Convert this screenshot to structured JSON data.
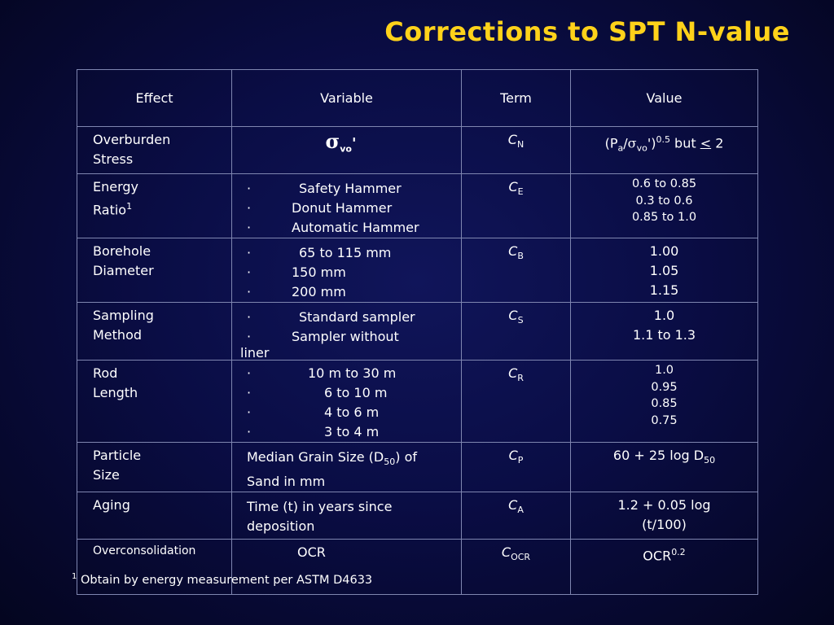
{
  "title": "Corrections to SPT N-value",
  "headers": {
    "effect": "Effect",
    "variable": "Variable",
    "term": "Term",
    "value": "Value"
  },
  "rows": {
    "overburden": {
      "effect_line1": "Overburden",
      "effect_line2": "Stress",
      "variable_symbol": "σ",
      "variable_sub": "vo",
      "variable_suffix": "'",
      "term_letter": "C",
      "term_sub": "N",
      "value_prefix": "(P",
      "value_sub_a": "a",
      "value_slash": "/",
      "value_sigma": "σ",
      "value_sub_vo": "vo",
      "value_close": "')",
      "value_exp": "0.5",
      "value_but": " but ",
      "value_le": "<",
      "value_end": " 2"
    },
    "energy": {
      "effect_line1": "Energy",
      "effect_line2": "Ratio",
      "effect_footnote": "1",
      "variables": [
        "Safety Hammer",
        "Donut Hammer",
        "Automatic Hammer"
      ],
      "term_letter": "C",
      "term_sub": "E",
      "values": [
        "0.6 to 0.85",
        "0.3 to 0.6",
        "0.85 to 1.0"
      ]
    },
    "borehole": {
      "effect_line1": "Borehole",
      "effect_line2": "Diameter",
      "variables": [
        "65 to 115 mm",
        "150 mm",
        "200 mm"
      ],
      "term_letter": "C",
      "term_sub": "B",
      "values": [
        "1.00",
        "1.05",
        "1.15"
      ]
    },
    "sampling": {
      "effect_line1": "Sampling",
      "effect_line2": "Method",
      "variables": [
        "Standard sampler",
        "Sampler without"
      ],
      "variable_wrap": "liner",
      "term_letter": "C",
      "term_sub": "S",
      "values": [
        "1.0",
        "1.1 to 1.3"
      ]
    },
    "rod": {
      "effect_line1": "Rod",
      "effect_line2": "Length",
      "variables": [
        "10 m to 30 m",
        "6 to 10 m",
        "4 to 6 m",
        "3 to 4 m"
      ],
      "term_letter": "C",
      "term_sub": "R",
      "values": [
        "1.0",
        "0.95",
        "0.85",
        "0.75"
      ]
    },
    "particle": {
      "effect_line1": "Particle",
      "effect_line2": "Size",
      "variable_line1_a": "Median Grain Size (D",
      "variable_line1_sub": "50",
      "variable_line1_b": ") of",
      "variable_line2": "Sand in mm",
      "term_letter": "C",
      "term_sub": "P",
      "value_a": "60 + 25 log D",
      "value_sub": "50"
    },
    "aging": {
      "effect_line1": "Aging",
      "variable_line1": "Time (t) in years since",
      "variable_line2": "deposition",
      "term_letter": "C",
      "term_sub": "A",
      "value_line1": "1.2 + 0.05 log",
      "value_line2": "(t/100)"
    },
    "overconsolidation": {
      "effect_line1": "Overconsolidation",
      "variable": "OCR",
      "term_letter": "C",
      "term_sub": "OCR",
      "value": "OCR",
      "value_exp": "0.2"
    }
  },
  "footnote": {
    "marker": "1",
    "text": " Obtain by energy measurement per ASTM D4633"
  }
}
